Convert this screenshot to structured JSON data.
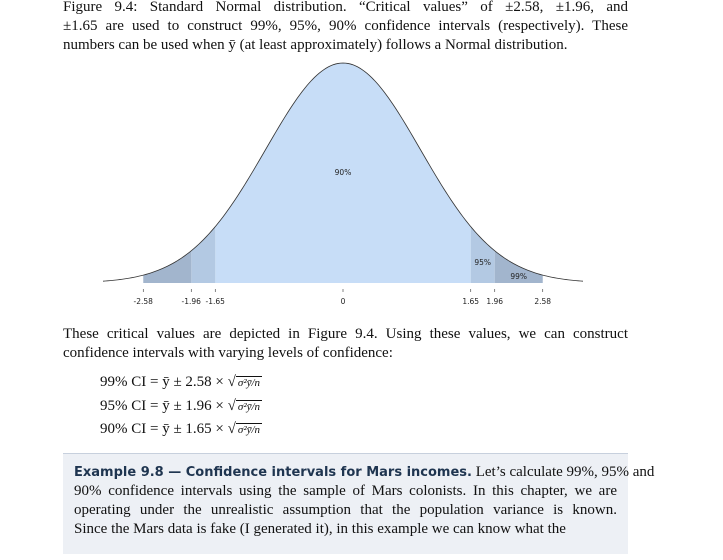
{
  "caption": {
    "lines": [
      "Figure 9.4: Standard Normal distribution. “Critical values” of ±2.58, ±1.96, and",
      "±1.65 are used to construct 99%, 95%, 90% confidence intervals (respectively). These",
      "numbers can be used when ȳ (at least approximately) follows a Normal distribution."
    ]
  },
  "figure": {
    "xlim": [
      -3.1,
      3.1
    ],
    "xticks": [
      -2.58,
      -1.96,
      -1.65,
      0,
      1.65,
      1.96,
      2.58
    ],
    "regions": [
      {
        "label": "90%",
        "color": "#c7ddf7"
      },
      {
        "label": "95%",
        "color": "#b3c9e3"
      },
      {
        "label": "99%",
        "color": "#a2b5cd"
      }
    ]
  },
  "paragraph": {
    "lines": [
      "These critical values are depicted in Figure 9.4. Using these values, we can construct",
      "confidence intervals with varying levels of confidence:"
    ]
  },
  "formulas": [
    {
      "lhs": "99% CI = ȳ ± 2.58 ×",
      "radicand": "σ²ȳ/n"
    },
    {
      "lhs": "95% CI = ȳ ± 1.96 ×",
      "radicand": "σ²ȳ/n"
    },
    {
      "lhs": "90% CI = ȳ ± 1.65 ×",
      "radicand": "σ²ȳ/n"
    }
  ],
  "example": {
    "title": "Example 9.8 — Confidence intervals for Mars incomes.",
    "lines": [
      " Let’s calculate 99%, 95% and",
      "90% confidence intervals using the sample of Mars colonists. In this chapter, we are",
      "operating under the unrealistic assumption that the population variance is known.",
      "Since the Mars data is fake (I generated it), in this example we can know what the"
    ]
  }
}
